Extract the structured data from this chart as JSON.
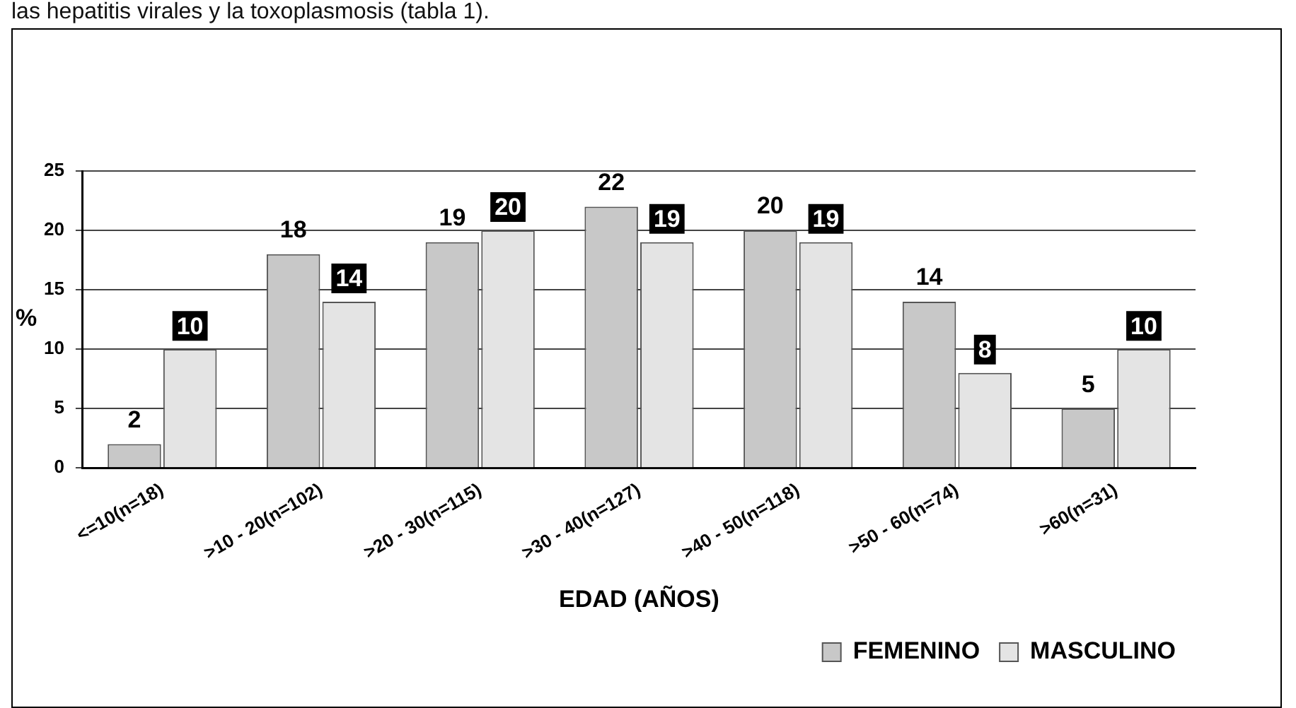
{
  "chart_data": {
    "type": "bar",
    "xlabel": "EDAD (AÑOS)",
    "ylabel": "%",
    "annotations": [
      "las hepatitis virales y la toxoplasmosis (tabla 1)."
    ],
    "categories": [
      "<=10(n=18)",
      ">10 - 20(n=102)",
      ">20 - 30(n=115)",
      ">30 - 40(n=127)",
      ">40 - 50(n=118)",
      ">50 - 60(n=74)",
      ">60(n=31)"
    ],
    "series": [
      {
        "name": "FEMENINO",
        "color": "#c8c8c8",
        "values": [
          2,
          18,
          19,
          22,
          20,
          14,
          5
        ]
      },
      {
        "name": "MASCULINO",
        "color": "#e4e4e4",
        "values": [
          10,
          14,
          20,
          19,
          19,
          8,
          10
        ]
      }
    ],
    "ylim": [
      0,
      25
    ],
    "yticks": [
      0,
      5,
      10,
      15,
      20,
      25
    ],
    "grid": "y",
    "legend": "bottom right",
    "data_labels": true
  }
}
